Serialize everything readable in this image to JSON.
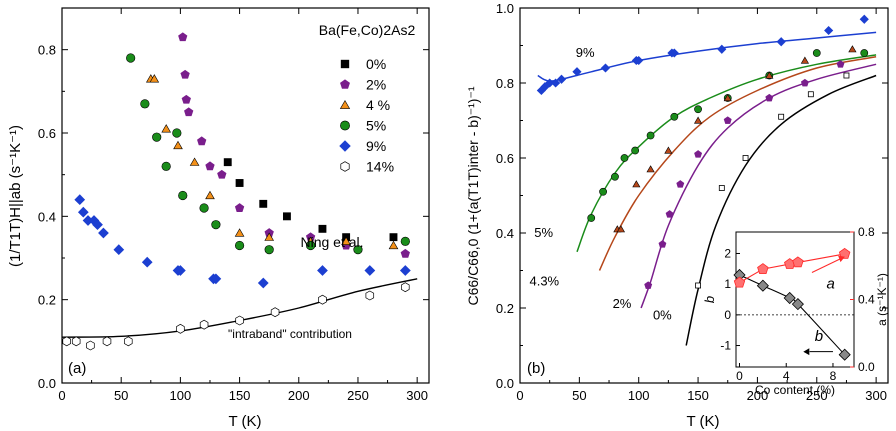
{
  "chart_data": [
    {
      "type": "scatter",
      "panel_label": "(a)",
      "xlabel": "T (K)",
      "ylabel": "(1/T1T)H||ab (s⁻¹K⁻¹)",
      "xlim": [
        0,
        310
      ],
      "ylim": [
        0,
        0.9
      ],
      "xticks": [
        0,
        50,
        100,
        150,
        200,
        250,
        300
      ],
      "yticks": [
        0.0,
        0.2,
        0.4,
        0.6,
        0.8
      ],
      "legend_title": "Ba(Fe,Co)2As2",
      "legend_placement": "top-right",
      "citation": "Ning et al.",
      "annotation": "\"intraband\" contribution",
      "series": [
        {
          "name": "0%",
          "color": "#000000",
          "marker": "square",
          "points": [
            [
              140,
              0.53
            ],
            [
              150,
              0.48
            ],
            [
              170,
              0.43
            ],
            [
              190,
              0.4
            ],
            [
              220,
              0.37
            ],
            [
              240,
              0.35
            ],
            [
              280,
              0.35
            ]
          ]
        },
        {
          "name": "2%",
          "color": "#7a1e8c",
          "marker": "pentagon",
          "points": [
            [
              102,
              0.83
            ],
            [
              104,
              0.74
            ],
            [
              105,
              0.68
            ],
            [
              107,
              0.65
            ],
            [
              118,
              0.58
            ],
            [
              125,
              0.52
            ],
            [
              135,
              0.5
            ],
            [
              150,
              0.42
            ],
            [
              175,
              0.36
            ],
            [
              210,
              0.35
            ],
            [
              240,
              0.33
            ],
            [
              290,
              0.31
            ]
          ]
        },
        {
          "name": "4 %",
          "color": "#f39019",
          "marker": "triangle",
          "points": [
            [
              75,
              0.73
            ],
            [
              78,
              0.73
            ],
            [
              88,
              0.61
            ],
            [
              98,
              0.57
            ],
            [
              112,
              0.53
            ],
            [
              125,
              0.45
            ],
            [
              150,
              0.36
            ],
            [
              175,
              0.35
            ],
            [
              210,
              0.34
            ],
            [
              240,
              0.34
            ],
            [
              280,
              0.33
            ]
          ]
        },
        {
          "name": "5%",
          "color": "#1a8c1a",
          "marker": "circle",
          "points": [
            [
              58,
              0.78
            ],
            [
              70,
              0.67
            ],
            [
              80,
              0.59
            ],
            [
              88,
              0.52
            ],
            [
              97,
              0.6
            ],
            [
              102,
              0.45
            ],
            [
              120,
              0.42
            ],
            [
              130,
              0.38
            ],
            [
              150,
              0.33
            ],
            [
              175,
              0.32
            ],
            [
              210,
              0.33
            ],
            [
              250,
              0.32
            ],
            [
              290,
              0.34
            ]
          ]
        },
        {
          "name": "9%",
          "color": "#1c3fd1",
          "marker": "diamond",
          "points": [
            [
              15,
              0.44
            ],
            [
              18,
              0.41
            ],
            [
              22,
              0.39
            ],
            [
              27,
              0.39
            ],
            [
              30,
              0.38
            ],
            [
              35,
              0.36
            ],
            [
              48,
              0.32
            ],
            [
              72,
              0.29
            ],
            [
              98,
              0.27
            ],
            [
              100,
              0.27
            ],
            [
              128,
              0.25
            ],
            [
              130,
              0.25
            ],
            [
              170,
              0.24
            ],
            [
              220,
              0.27
            ],
            [
              260,
              0.27
            ],
            [
              290,
              0.27
            ]
          ]
        },
        {
          "name": "14%",
          "color": "#ffffff",
          "marker": "hexagon",
          "points": [
            [
              4,
              0.1
            ],
            [
              12,
              0.1
            ],
            [
              24,
              0.09
            ],
            [
              38,
              0.1
            ],
            [
              56,
              0.1
            ],
            [
              100,
              0.13
            ],
            [
              120,
              0.14
            ],
            [
              150,
              0.15
            ],
            [
              180,
              0.17
            ],
            [
              220,
              0.2
            ],
            [
              260,
              0.21
            ],
            [
              290,
              0.23
            ]
          ]
        }
      ],
      "fit_curve": {
        "name": "\"intraband\" contribution",
        "x": [
          0,
          50,
          100,
          150,
          200,
          250,
          300
        ],
        "y": [
          0.11,
          0.112,
          0.125,
          0.15,
          0.18,
          0.22,
          0.25
        ]
      }
    },
    {
      "type": "line",
      "panel_label": "(b)",
      "xlabel": "T (K)",
      "ylabel": "C66/C66,0   (1+(a(T1T)inter - b)⁻¹)⁻¹",
      "xlim": [
        0,
        310
      ],
      "ylim": [
        0,
        1.0
      ],
      "xticks": [
        0,
        50,
        100,
        150,
        200,
        250,
        300
      ],
      "yticks": [
        0.0,
        0.2,
        0.4,
        0.6,
        0.8,
        1.0
      ],
      "series": [
        {
          "name": "9%",
          "color": "#1c3fd1",
          "marker": "diamond",
          "points": [
            [
              18,
              0.78
            ],
            [
              21,
              0.79
            ],
            [
              25,
              0.8
            ],
            [
              30,
              0.8
            ],
            [
              35,
              0.81
            ],
            [
              48,
              0.83
            ],
            [
              72,
              0.84
            ],
            [
              98,
              0.86
            ],
            [
              100,
              0.86
            ],
            [
              128,
              0.88
            ],
            [
              130,
              0.88
            ],
            [
              170,
              0.89
            ],
            [
              220,
              0.91
            ],
            [
              260,
              0.94
            ],
            [
              290,
              0.97
            ]
          ],
          "curve": [
            [
              15,
              0.82
            ],
            [
              20,
              0.81
            ],
            [
              25,
              0.805
            ],
            [
              35,
              0.81
            ],
            [
              60,
              0.83
            ],
            [
              100,
              0.86
            ],
            [
              150,
              0.885
            ],
            [
              200,
              0.905
            ],
            [
              250,
              0.92
            ],
            [
              300,
              0.935
            ]
          ]
        },
        {
          "name": "5%",
          "color": "#1a8c1a",
          "marker": "circle",
          "points": [
            [
              60,
              0.44
            ],
            [
              70,
              0.51
            ],
            [
              80,
              0.55
            ],
            [
              88,
              0.6
            ],
            [
              97,
              0.62
            ],
            [
              110,
              0.66
            ],
            [
              130,
              0.71
            ],
            [
              150,
              0.73
            ],
            [
              175,
              0.76
            ],
            [
              210,
              0.82
            ],
            [
              250,
              0.88
            ],
            [
              290,
              0.88
            ]
          ],
          "curve": [
            [
              48,
              0.35
            ],
            [
              60,
              0.45
            ],
            [
              80,
              0.56
            ],
            [
              100,
              0.63
            ],
            [
              130,
              0.71
            ],
            [
              160,
              0.76
            ],
            [
              200,
              0.81
            ],
            [
              250,
              0.85
            ],
            [
              300,
              0.875
            ]
          ]
        },
        {
          "name": "4.3%",
          "color": "#b5471a",
          "marker": "triangle",
          "points": [
            [
              82,
              0.41
            ],
            [
              85,
              0.41
            ],
            [
              98,
              0.53
            ],
            [
              110,
              0.57
            ],
            [
              125,
              0.62
            ],
            [
              150,
              0.7
            ],
            [
              175,
              0.76
            ],
            [
              210,
              0.82
            ],
            [
              240,
              0.86
            ],
            [
              280,
              0.89
            ]
          ],
          "curve": [
            [
              67,
              0.3
            ],
            [
              80,
              0.39
            ],
            [
              100,
              0.5
            ],
            [
              130,
              0.62
            ],
            [
              160,
              0.71
            ],
            [
              200,
              0.78
            ],
            [
              250,
              0.84
            ],
            [
              300,
              0.87
            ]
          ]
        },
        {
          "name": "2%",
          "color": "#7a1e8c",
          "marker": "pentagon",
          "points": [
            [
              108,
              0.26
            ],
            [
              120,
              0.37
            ],
            [
              126,
              0.45
            ],
            [
              135,
              0.53
            ],
            [
              150,
              0.61
            ],
            [
              175,
              0.7
            ],
            [
              210,
              0.76
            ],
            [
              240,
              0.8
            ],
            [
              270,
              0.85
            ]
          ],
          "curve": [
            [
              102,
              0.2
            ],
            [
              110,
              0.27
            ],
            [
              125,
              0.42
            ],
            [
              150,
              0.58
            ],
            [
              175,
              0.68
            ],
            [
              210,
              0.76
            ],
            [
              250,
              0.81
            ],
            [
              300,
              0.85
            ]
          ]
        },
        {
          "name": "0%",
          "color": "#000000",
          "marker": "open-square",
          "points": [
            [
              150,
              0.26
            ],
            [
              170,
              0.52
            ],
            [
              190,
              0.6
            ],
            [
              220,
              0.71
            ],
            [
              245,
              0.77
            ],
            [
              275,
              0.82
            ]
          ],
          "curve": [
            [
              140,
              0.1
            ],
            [
              150,
              0.25
            ],
            [
              165,
              0.42
            ],
            [
              190,
              0.58
            ],
            [
              220,
              0.69
            ],
            [
              260,
              0.77
            ],
            [
              300,
              0.82
            ]
          ]
        }
      ],
      "series_labels": [
        "9%",
        "5%",
        "4.3%",
        "2%",
        "0%"
      ],
      "inset": {
        "xlabel": "Co content (%)",
        "xticks": [
          0,
          4,
          8
        ],
        "ylabel_left": "b",
        "ylabel_right": "a (s⁻¹K⁻¹)",
        "yticks_left": [
          -1,
          0,
          1,
          2
        ],
        "yticks_right": [
          0.0,
          0.4,
          0.8
        ],
        "b_label": "b",
        "a_label": "a",
        "b_series": {
          "color": "#000000",
          "points": [
            [
              0,
              1.3
            ],
            [
              2,
              0.95
            ],
            [
              4.3,
              0.55
            ],
            [
              5,
              0.35
            ],
            [
              9,
              -1.3
            ]
          ]
        },
        "a_series": {
          "color": "#ff2a2a",
          "points": [
            [
              0,
              0.5
            ],
            [
              2,
              0.58
            ],
            [
              4.3,
              0.61
            ],
            [
              5,
              0.62
            ],
            [
              9,
              0.67
            ]
          ]
        }
      }
    }
  ]
}
